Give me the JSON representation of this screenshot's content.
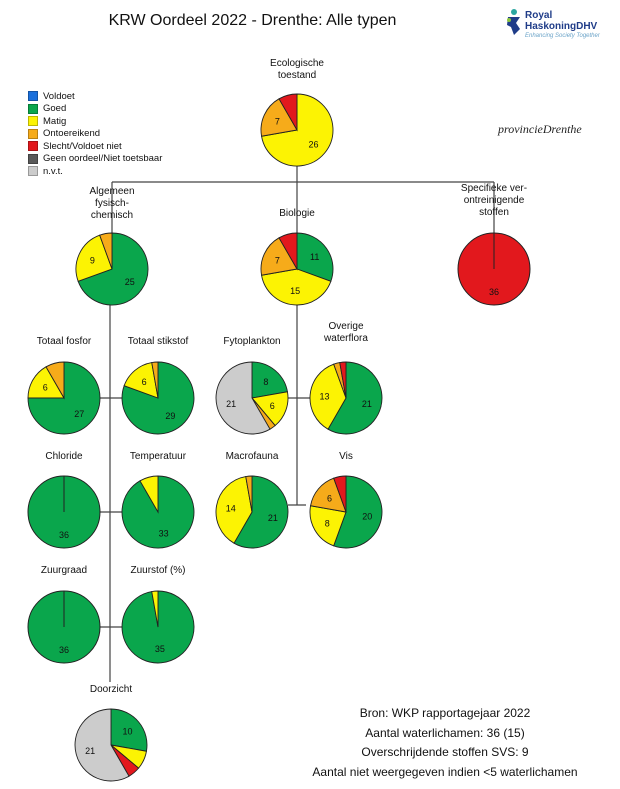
{
  "title": "KRW Oordeel 2022 - Drenthe: Alle typen",
  "logo": {
    "name_line1": "Royal",
    "name_line2": "HaskoningDHV",
    "tagline": "Enhancing Society Together"
  },
  "province_logo": "provincieDrenthe",
  "legend": [
    {
      "label": "Voldoet",
      "color": "#1a6fdb"
    },
    {
      "label": "Goed",
      "color": "#0aa64c"
    },
    {
      "label": "Matig",
      "color": "#fcf303"
    },
    {
      "label": "Ontoereikend",
      "color": "#f6ab1a"
    },
    {
      "label": "Slecht/Voldoet niet",
      "color": "#e2181d"
    },
    {
      "label": "Geen oordeel/Niet toetsbaar",
      "color": "#595959"
    },
    {
      "label": "n.v.t.",
      "color": "#cccccc"
    }
  ],
  "chart_data": {
    "type": "pie",
    "categories": [
      "Voldoet",
      "Goed",
      "Matig",
      "Ontoereikend",
      "Slecht/Voldoet niet",
      "Geen oordeel/Niet toetsbaar",
      "n.v.t."
    ],
    "pies": [
      {
        "id": "ecologische-toestand",
        "label": [
          "Ecologische",
          "toestand"
        ],
        "values": [
          0,
          0,
          26,
          7,
          3,
          0,
          0
        ],
        "shown": [
          "26",
          "7"
        ]
      },
      {
        "id": "algemeen-fysisch-chemisch",
        "label": [
          "Algemeen",
          "fysisch-",
          "chemisch"
        ],
        "values": [
          0,
          25,
          9,
          2,
          0,
          0,
          0
        ],
        "shown": [
          "25",
          "9"
        ]
      },
      {
        "id": "biologie",
        "label": [
          "Biologie"
        ],
        "values": [
          0,
          11,
          15,
          7,
          3,
          0,
          0
        ],
        "shown": [
          "11",
          "15",
          "7"
        ]
      },
      {
        "id": "specifieke-verontreinigende-stoffen",
        "label": [
          "Specifieke ver-",
          "ontreinigende",
          "stoffen"
        ],
        "values": [
          0,
          0,
          0,
          0,
          36,
          0,
          0
        ],
        "shown": [
          "36"
        ]
      },
      {
        "id": "totaal-fosfor",
        "label": [
          "Totaal fosfor"
        ],
        "values": [
          0,
          27,
          6,
          3,
          0,
          0,
          0
        ],
        "shown": [
          "27",
          "6"
        ]
      },
      {
        "id": "totaal-stikstof",
        "label": [
          "Totaal stikstof"
        ],
        "values": [
          0,
          29,
          6,
          1,
          0,
          0,
          0
        ],
        "shown": [
          "29",
          "6"
        ]
      },
      {
        "id": "fytoplankton",
        "label": [
          "Fytoplankton"
        ],
        "values": [
          0,
          8,
          6,
          1,
          0,
          0,
          21
        ],
        "shown": [
          "8",
          "6",
          "21"
        ]
      },
      {
        "id": "overige-waterflora",
        "label": [
          "Overige",
          "waterflora"
        ],
        "values": [
          0,
          21,
          13,
          1,
          1,
          0,
          0
        ],
        "shown": [
          "21",
          "13"
        ]
      },
      {
        "id": "chloride",
        "label": [
          "Chloride"
        ],
        "values": [
          0,
          36,
          0,
          0,
          0,
          0,
          0
        ],
        "shown": [
          "36"
        ]
      },
      {
        "id": "temperatuur",
        "label": [
          "Temperatuur"
        ],
        "values": [
          0,
          33,
          3,
          0,
          0,
          0,
          0
        ],
        "shown": [
          "33"
        ]
      },
      {
        "id": "macrofauna",
        "label": [
          "Macrofauna"
        ],
        "values": [
          0,
          21,
          14,
          1,
          0,
          0,
          0
        ],
        "shown": [
          "21",
          "14"
        ]
      },
      {
        "id": "vis",
        "label": [
          "Vis"
        ],
        "values": [
          0,
          20,
          8,
          6,
          2,
          0,
          0
        ],
        "shown": [
          "20",
          "8",
          "6"
        ]
      },
      {
        "id": "zuurgraad",
        "label": [
          "Zuurgraad"
        ],
        "values": [
          0,
          36,
          0,
          0,
          0,
          0,
          0
        ],
        "shown": [
          "36"
        ]
      },
      {
        "id": "zuurstof",
        "label": [
          "Zuurstof (%)"
        ],
        "values": [
          0,
          35,
          1,
          0,
          0,
          0,
          0
        ],
        "shown": [
          "35"
        ]
      },
      {
        "id": "doorzicht",
        "label": [
          "Doorzicht"
        ],
        "values": [
          0,
          10,
          3,
          0,
          2,
          0,
          21
        ],
        "shown": [
          "10",
          "21"
        ]
      }
    ]
  },
  "footer": {
    "source": "Bron: WKP rapportagejaar 2022",
    "waterbodies": "Aantal waterlichamen: 36 (15)",
    "substances": "Overschrijdende stoffen SVS: 9",
    "note": "Aantal niet weergegeven indien <5 waterlichamen"
  }
}
